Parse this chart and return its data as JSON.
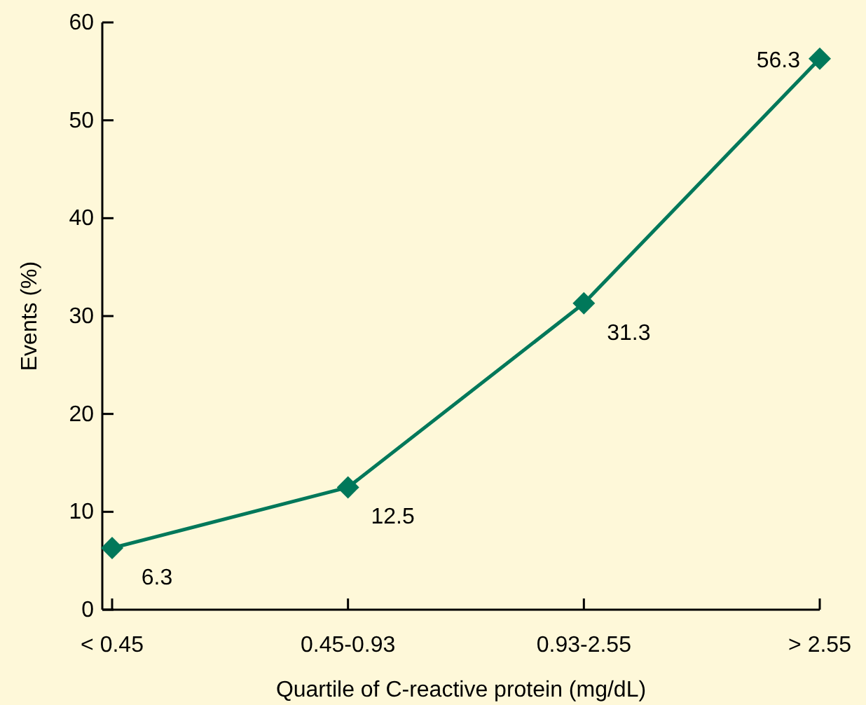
{
  "chart_data": {
    "type": "line",
    "xlabel": "Quartile of C-reactive protein (mg/dL)",
    "ylabel": "Events (%)",
    "categories": [
      "< 0.45",
      "0.45-0.93",
      "0.93-2.55",
      "> 2.55"
    ],
    "series": [
      {
        "color": "#00785a",
        "values": [
          6.3,
          12.5,
          31.3,
          56.3
        ]
      }
    ],
    "ylim": [
      0,
      60
    ],
    "yticks": [
      0,
      10,
      20,
      30,
      40,
      50,
      60
    ],
    "grid": false,
    "marker": "diamond",
    "line_style": "solid",
    "data_labels": true
  }
}
